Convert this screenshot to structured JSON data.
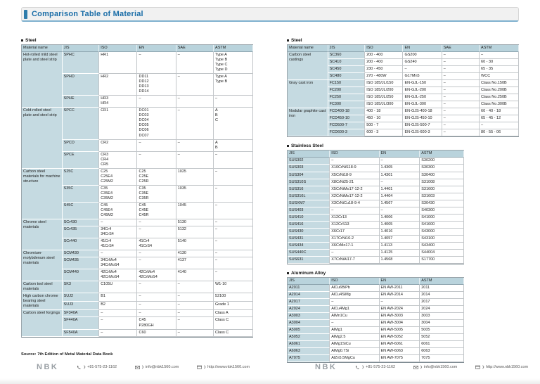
{
  "header": {
    "title": "Comparison Table of Material"
  },
  "colors": {
    "accent_blue": "#2e7cab",
    "title_text": "#1b6ea8",
    "table_header_bg": "#b9d3dc",
    "label_cell_bg": "#c5dae1"
  },
  "left_page": {
    "steel": {
      "section_title": "Steel",
      "columns": [
        "Material name",
        "JIS",
        "ISO",
        "EN",
        "SAE",
        "ASTM"
      ],
      "groups": [
        {
          "name": "Hot-rolled mild steel plate and steel strip",
          "rows": [
            {
              "jis": "SPHC",
              "iso": "HR1",
              "en": "–",
              "sae": "–",
              "astm": "Type A\nType B\nType C\nType D"
            },
            {
              "jis": "SPHD",
              "iso": "HR2",
              "en": "DD11\nDD12\nDD13\nDD14",
              "sae": "–",
              "astm": "Type A\nType B"
            },
            {
              "jis": "SPHE",
              "iso": "HR3\nHR4",
              "en": "–",
              "sae": "–",
              "astm": "–"
            }
          ]
        },
        {
          "name": "Cold-rolled steel plate and steel strip",
          "rows": [
            {
              "jis": "SPCC",
              "iso": "CR1",
              "en": "DC01\nDC03\nDC04\nDC05\nDC06\nDC07",
              "sae": "–",
              "astm": "A\nB\nC"
            },
            {
              "jis": "SPCD",
              "iso": "CR2",
              "en": "–",
              "sae": "–",
              "astm": "A\nB"
            },
            {
              "jis": "SPCE",
              "iso": "CR3\nCR4\nCR5",
              "en": "–",
              "sae": "–",
              "astm": "–"
            }
          ]
        },
        {
          "name": "Carbon steel materials for machine structure",
          "rows": [
            {
              "jis": "S25C",
              "iso": "C25\nC25E4\nC25M2",
              "en": "C25\nC25E\nC25R",
              "sae": "1025",
              "astm": "–"
            },
            {
              "jis": "S35C",
              "iso": "C35\nC35E4\nC35M2",
              "en": "C35\nC35E\nC35R",
              "sae": "1035",
              "astm": "–"
            },
            {
              "jis": "S45C",
              "iso": "C45\nC45E4\nC45M2",
              "en": "C45\nC45E\nC45R",
              "sae": "1045",
              "astm": "–"
            }
          ]
        },
        {
          "name": "Chrome steel materials",
          "rows": [
            {
              "jis": "SCr430",
              "iso": "–",
              "en": "–",
              "sae": "5130",
              "astm": "–"
            },
            {
              "jis": "SCr435",
              "iso": "34Cr4\n34CrS4",
              "en": "–",
              "sae": "5132",
              "astm": "–"
            },
            {
              "jis": "SCr440",
              "iso": "41Cr4\n41CrS4",
              "en": "41Cr4\n41CrS4",
              "sae": "5140",
              "astm": "–"
            }
          ]
        },
        {
          "name": "Chromium-molybdenum steel materials",
          "rows": [
            {
              "jis": "SCM430",
              "iso": "–",
              "en": "–",
              "sae": "4130",
              "astm": "–"
            },
            {
              "jis": "SCM435",
              "iso": "34CrMo4\n34CrMoS4",
              "en": "–",
              "sae": "4137",
              "astm": "–"
            },
            {
              "jis": "SCM440",
              "iso": "42CrMo4\n42CrMoS4",
              "en": "42CrMo4\n42CrMoS4",
              "sae": "4140",
              "astm": "–"
            }
          ]
        },
        {
          "name": "Carbon tool steel materials",
          "rows": [
            {
              "jis": "SK3",
              "iso": "C105U",
              "en": "–",
              "sae": "–",
              "astm": "W1-10"
            }
          ]
        },
        {
          "name": "High carbon chrome bearing steel materials",
          "rows": [
            {
              "jis": "SUJ2",
              "iso": "B1",
              "en": "–",
              "sae": "–",
              "astm": "52100"
            },
            {
              "jis": "SUJ3",
              "iso": "B2",
              "en": "–",
              "sae": "–",
              "astm": "Grade 1"
            }
          ]
        },
        {
          "name": "Carbon steel forgings",
          "rows": [
            {
              "jis": "SF340A",
              "iso": "–",
              "en": "–",
              "sae": "–",
              "astm": "Class A"
            },
            {
              "jis": "SF440A",
              "iso": "–",
              "en": "C45\nP280GH",
              "sae": "–",
              "astm": "Class C"
            },
            {
              "jis": "SF540A",
              "iso": "–",
              "en": "C60",
              "sae": "–",
              "astm": "Class C"
            }
          ]
        }
      ]
    }
  },
  "right_page": {
    "steel": {
      "section_title": "Steel",
      "columns": [
        "Material name",
        "JIS",
        "ISO",
        "EN",
        "SAE",
        "ASTM"
      ],
      "groups": [
        {
          "name": "Carbon steel castings",
          "rows": [
            {
              "jis": "SC360",
              "iso": "200 - 400",
              "en": "GS200",
              "sae": "–",
              "astm": "–"
            },
            {
              "jis": "SC410",
              "iso": "200 - 400",
              "en": "GS240",
              "sae": "–",
              "astm": "60 - 30"
            },
            {
              "jis": "SC450",
              "iso": "230 - 450",
              "en": "–",
              "sae": "–",
              "astm": "65 - 35"
            },
            {
              "jis": "SC480",
              "iso": "270 - 480W",
              "en": "G17Mn5",
              "sae": "–",
              "astm": "WCC"
            }
          ]
        },
        {
          "name": "Gray cast iron",
          "rows": [
            {
              "jis": "FC150",
              "iso": "ISO 185/JL/150",
              "en": "EN-GJL-150",
              "sae": "–",
              "astm": "Class No.150B"
            },
            {
              "jis": "FC200",
              "iso": "ISO 185/JL/200",
              "en": "EN-GJL-200",
              "sae": "–",
              "astm": "Class No.200B"
            },
            {
              "jis": "FC250",
              "iso": "ISO 185/JL/250",
              "en": "EN-GJL-250",
              "sae": "–",
              "astm": "Class No.250B"
            },
            {
              "jis": "FC300",
              "iso": "ISO 185/JL/300",
              "en": "EN-GJL-300",
              "sae": "–",
              "astm": "Class No.300B"
            }
          ]
        },
        {
          "name": "Nodular graphite cast iron",
          "rows": [
            {
              "jis": "FCD400-18",
              "iso": "400 - 18",
              "en": "EN-GJS-400-18",
              "sae": "–",
              "astm": "60 - 40 - 18"
            },
            {
              "jis": "FCD450-10",
              "iso": "450 - 10",
              "en": "EN-GJS-450-10",
              "sae": "–",
              "astm": "65 - 45 - 12"
            },
            {
              "jis": "FCD500-7",
              "iso": "500 - 7",
              "en": "EN-GJS-500-7",
              "sae": "–",
              "astm": "–"
            },
            {
              "jis": "FCD600-3",
              "iso": "600 - 3",
              "en": "EN-GJS-600-3",
              "sae": "–",
              "astm": "80 - 55 - 06"
            }
          ]
        }
      ]
    },
    "stainless": {
      "section_title": "Stainless Steel",
      "columns": [
        "JIS",
        "ISO",
        "EN",
        "ASTM"
      ],
      "rows": [
        [
          "SUS302",
          "–",
          "–",
          "S30200"
        ],
        [
          "SUS303",
          "X10CrNiS18-9",
          "1.4305",
          "S30300"
        ],
        [
          "SUS304",
          "X5CrNi18-9",
          "1.4301",
          "S30400"
        ],
        [
          "SUS310S",
          "X8CrNi25-21",
          "–",
          "S31008"
        ],
        [
          "SUS316",
          "X5CrNiMo17-12-2",
          "1.4401",
          "S31600"
        ],
        [
          "SUS316L",
          "X2CrNiMo17-12-2",
          "1.4404",
          "S31603"
        ],
        [
          "SUSXM7",
          "X3CrNiCu18-9-4",
          "1.4567",
          "S30430"
        ],
        [
          "SUS403",
          "–",
          "–",
          "S40300"
        ],
        [
          "SUS410",
          "X12Cr13",
          "1.4006",
          "S41000"
        ],
        [
          "SUS416",
          "X12CrS13",
          "1.4005",
          "S41600"
        ],
        [
          "SUS430",
          "X6Cr17",
          "1.4016",
          "S43000"
        ],
        [
          "SUS431",
          "X17CrNi16-2",
          "1.4057",
          "S43100"
        ],
        [
          "SUS434",
          "X6CrMo17-1",
          "1.4113",
          "S43400"
        ],
        [
          "SUS440C",
          "–",
          "1.4125",
          "S44004"
        ],
        [
          "SUS631",
          "X7CrNiAl17-7",
          "1.4568",
          "S17700"
        ]
      ]
    },
    "aluminum": {
      "section_title": "Aluminum Alloy",
      "columns": [
        "JIS",
        "ISO",
        "EN",
        "ASTM"
      ],
      "rows": [
        [
          "A2011",
          "AlCu6BiPb",
          "EN AW-2011",
          "2011"
        ],
        [
          "A2014",
          "AlCu4SiMg",
          "EN AW-2014",
          "2014"
        ],
        [
          "A2017",
          "–",
          "–",
          "2017"
        ],
        [
          "A2024",
          "AlCu4Mg1",
          "EN AW-2024",
          "2024"
        ],
        [
          "A3003",
          "AlMn1Cu",
          "EN AW-3003",
          "3003"
        ],
        [
          "A3004",
          "–",
          "EN AW-3004",
          "3004"
        ],
        [
          "A5005",
          "AlMg1",
          "EN AW-5005",
          "5005"
        ],
        [
          "A5052",
          "AlMg2.5",
          "EN AW-5052",
          "5052"
        ],
        [
          "A6061",
          "AlMg1SiCu",
          "EN AW-6061",
          "6061"
        ],
        [
          "A6063",
          "AlMg0.7Si",
          "EN AW-6063",
          "6063"
        ],
        [
          "A7075",
          "AlZn5.5MgCu",
          "EN AW-7075",
          "7075"
        ]
      ]
    }
  },
  "footer": {
    "source": "Source: 7th Edition of Metal Material Data Book",
    "brand": "NBK",
    "phone": "+81-575-23-1162",
    "email": "info@nbk1560.com",
    "web": "http://www.nbk1560.com",
    "icons": {
      "phone": "phone-icon",
      "email": "email-icon",
      "web": "web-icon"
    }
  }
}
